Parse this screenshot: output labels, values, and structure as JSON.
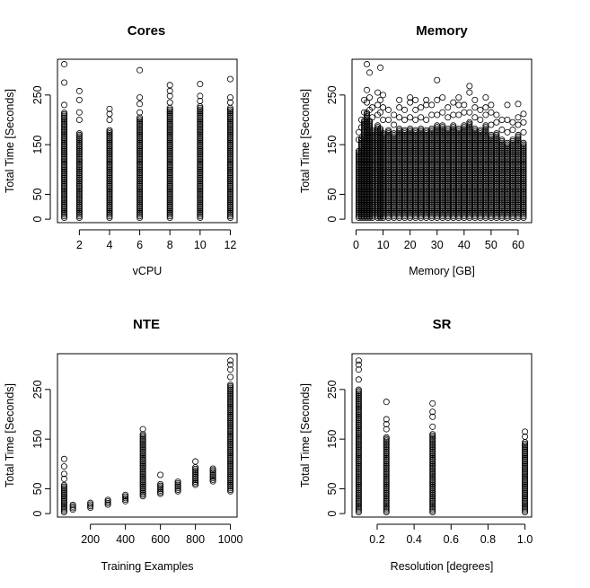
{
  "chart_data": [
    {
      "id": "cores",
      "type": "scatter",
      "title": "Cores",
      "xlabel": "vCPU",
      "ylabel": "Total Time [Seconds]",
      "xlim": [
        0.55,
        12.45
      ],
      "ylim": [
        -7,
        322
      ],
      "xticks": [
        2,
        4,
        6,
        8,
        10,
        12
      ],
      "yticks": [
        0,
        50,
        150,
        250
      ],
      "groups": [
        {
          "x": 1,
          "min": 3,
          "max": 215,
          "outliers": [
            230,
            275,
            312
          ]
        },
        {
          "x": 2,
          "min": 3,
          "max": 175,
          "outliers": [
            200,
            215,
            240,
            258
          ]
        },
        {
          "x": 4,
          "min": 3,
          "max": 180,
          "outliers": [
            200,
            212,
            222
          ]
        },
        {
          "x": 6,
          "min": 3,
          "max": 205,
          "outliers": [
            215,
            232,
            245,
            300
          ]
        },
        {
          "x": 8,
          "min": 3,
          "max": 225,
          "outliers": [
            235,
            248,
            258,
            270
          ]
        },
        {
          "x": 10,
          "min": 3,
          "max": 228,
          "outliers": [
            238,
            248,
            272
          ]
        },
        {
          "x": 12,
          "min": 3,
          "max": 225,
          "outliers": [
            235,
            245,
            282
          ]
        }
      ]
    },
    {
      "id": "memory",
      "type": "scatter",
      "title": "Memory",
      "xlabel": "Memory [GB]",
      "ylabel": "Total Time [Seconds]",
      "xlim": [
        -1.5,
        65
      ],
      "ylim": [
        -7,
        322
      ],
      "xticks": [
        0,
        10,
        20,
        30,
        40,
        50,
        60
      ],
      "xtick_labels": [
        "0",
        "10",
        "20",
        "30",
        "40",
        "50",
        "60"
      ],
      "yticks": [
        0,
        50,
        150,
        250
      ],
      "groups": [
        {
          "x": 1,
          "min": 3,
          "max": 140,
          "outliers": [
            160,
            175
          ]
        },
        {
          "x": 2,
          "min": 3,
          "max": 165,
          "outliers": [
            185,
            200
          ]
        },
        {
          "x": 3,
          "min": 3,
          "max": 200,
          "outliers": [
            215,
            240
          ]
        },
        {
          "x": 4,
          "min": 3,
          "max": 215,
          "outliers": [
            235,
            260,
            312
          ]
        },
        {
          "x": 5,
          "min": 3,
          "max": 200,
          "outliers": [
            220,
            245,
            295
          ]
        },
        {
          "x": 6,
          "min": 3,
          "max": 180,
          "outliers": [
            205,
            225
          ]
        },
        {
          "x": 8,
          "min": 3,
          "max": 190,
          "outliers": [
            210,
            230,
            255
          ]
        },
        {
          "x": 9,
          "min": 3,
          "max": 185,
          "outliers": [
            215,
            240,
            305
          ]
        },
        {
          "x": 10,
          "min": 3,
          "max": 175,
          "outliers": [
            200,
            225,
            250
          ]
        },
        {
          "x": 12,
          "min": 3,
          "max": 180,
          "outliers": [
            200,
            220
          ]
        },
        {
          "x": 14,
          "min": 3,
          "max": 175,
          "outliers": [
            190,
            210
          ]
        },
        {
          "x": 16,
          "min": 3,
          "max": 185,
          "outliers": [
            205,
            225,
            240
          ]
        },
        {
          "x": 18,
          "min": 3,
          "max": 180,
          "outliers": [
            200,
            220
          ]
        },
        {
          "x": 20,
          "min": 3,
          "max": 185,
          "outliers": [
            205,
            235,
            245
          ]
        },
        {
          "x": 22,
          "min": 3,
          "max": 180,
          "outliers": [
            200,
            220,
            240
          ]
        },
        {
          "x": 24,
          "min": 3,
          "max": 185,
          "outliers": [
            205,
            225
          ]
        },
        {
          "x": 26,
          "min": 3,
          "max": 180,
          "outliers": [
            200,
            230,
            240
          ]
        },
        {
          "x": 28,
          "min": 3,
          "max": 185,
          "outliers": [
            210,
            230
          ]
        },
        {
          "x": 30,
          "min": 3,
          "max": 190,
          "outliers": [
            210,
            240,
            280
          ]
        },
        {
          "x": 32,
          "min": 3,
          "max": 190,
          "outliers": [
            215,
            245
          ]
        },
        {
          "x": 34,
          "min": 3,
          "max": 185,
          "outliers": [
            205,
            225
          ]
        },
        {
          "x": 36,
          "min": 3,
          "max": 190,
          "outliers": [
            210,
            235
          ]
        },
        {
          "x": 38,
          "min": 3,
          "max": 185,
          "outliers": [
            210,
            230,
            245
          ]
        },
        {
          "x": 40,
          "min": 3,
          "max": 190,
          "outliers": [
            215,
            230
          ]
        },
        {
          "x": 42,
          "min": 3,
          "max": 195,
          "outliers": [
            215,
            255,
            268
          ]
        },
        {
          "x": 44,
          "min": 3,
          "max": 185,
          "outliers": [
            205,
            225,
            240
          ]
        },
        {
          "x": 46,
          "min": 3,
          "max": 180,
          "outliers": [
            200,
            220
          ]
        },
        {
          "x": 48,
          "min": 3,
          "max": 190,
          "outliers": [
            210,
            225,
            245
          ]
        },
        {
          "x": 50,
          "min": 3,
          "max": 170,
          "outliers": [
            190,
            215,
            230
          ]
        },
        {
          "x": 52,
          "min": 3,
          "max": 175,
          "outliers": [
            195,
            210
          ]
        },
        {
          "x": 54,
          "min": 3,
          "max": 160,
          "outliers": [
            180,
            200
          ]
        },
        {
          "x": 56,
          "min": 3,
          "max": 155,
          "outliers": [
            175,
            200,
            230
          ]
        },
        {
          "x": 58,
          "min": 3,
          "max": 160,
          "outliers": [
            180,
            195
          ]
        },
        {
          "x": 60,
          "min": 3,
          "max": 170,
          "outliers": [
            190,
            205,
            232
          ]
        },
        {
          "x": 62,
          "min": 3,
          "max": 155,
          "outliers": [
            175,
            195,
            212
          ]
        }
      ]
    },
    {
      "id": "nte",
      "type": "scatter",
      "title": "NTE",
      "xlabel": "Training Examples",
      "ylabel": "Total Time [Seconds]",
      "xlim": [
        12,
        1038
      ],
      "ylim": [
        -7,
        322
      ],
      "xticks": [
        200,
        400,
        600,
        800,
        1000
      ],
      "yticks": [
        0,
        50,
        150,
        250
      ],
      "groups": [
        {
          "x": 50,
          "min": 3,
          "max": 60,
          "outliers": [
            70,
            80,
            95,
            110
          ]
        },
        {
          "x": 100,
          "min": 8,
          "max": 18,
          "outliers": []
        },
        {
          "x": 200,
          "min": 12,
          "max": 22,
          "outliers": []
        },
        {
          "x": 300,
          "min": 18,
          "max": 30,
          "outliers": []
        },
        {
          "x": 400,
          "min": 25,
          "max": 40,
          "outliers": []
        },
        {
          "x": 500,
          "min": 35,
          "max": 160,
          "outliers": [
            170
          ]
        },
        {
          "x": 600,
          "min": 40,
          "max": 60,
          "outliers": [
            78
          ]
        },
        {
          "x": 700,
          "min": 45,
          "max": 65,
          "outliers": []
        },
        {
          "x": 800,
          "min": 58,
          "max": 95,
          "outliers": [
            105
          ]
        },
        {
          "x": 900,
          "min": 65,
          "max": 92,
          "outliers": []
        },
        {
          "x": 1000,
          "min": 45,
          "max": 260,
          "outliers": [
            275,
            290,
            300,
            308
          ]
        }
      ]
    },
    {
      "id": "sr",
      "type": "scatter",
      "title": "SR",
      "xlabel": "Resolution [degrees]",
      "ylabel": "Total Time [Seconds]",
      "xlim": [
        0.064,
        1.036
      ],
      "ylim": [
        -7,
        322
      ],
      "xticks": [
        0.2,
        0.4,
        0.6,
        0.8,
        1.0
      ],
      "xtick_labels": [
        "0.2",
        "0.4",
        "0.6",
        "0.8",
        "1.0"
      ],
      "yticks": [
        0,
        50,
        150,
        250
      ],
      "groups": [
        {
          "x": 0.1,
          "min": 3,
          "max": 250,
          "outliers": [
            270,
            290,
            300,
            308
          ]
        },
        {
          "x": 0.25,
          "min": 3,
          "max": 155,
          "outliers": [
            170,
            180,
            190,
            225
          ]
        },
        {
          "x": 0.5,
          "min": 3,
          "max": 160,
          "outliers": [
            175,
            195,
            205,
            222
          ]
        },
        {
          "x": 1.0,
          "min": 3,
          "max": 145,
          "outliers": [
            155,
            165
          ]
        }
      ]
    }
  ]
}
